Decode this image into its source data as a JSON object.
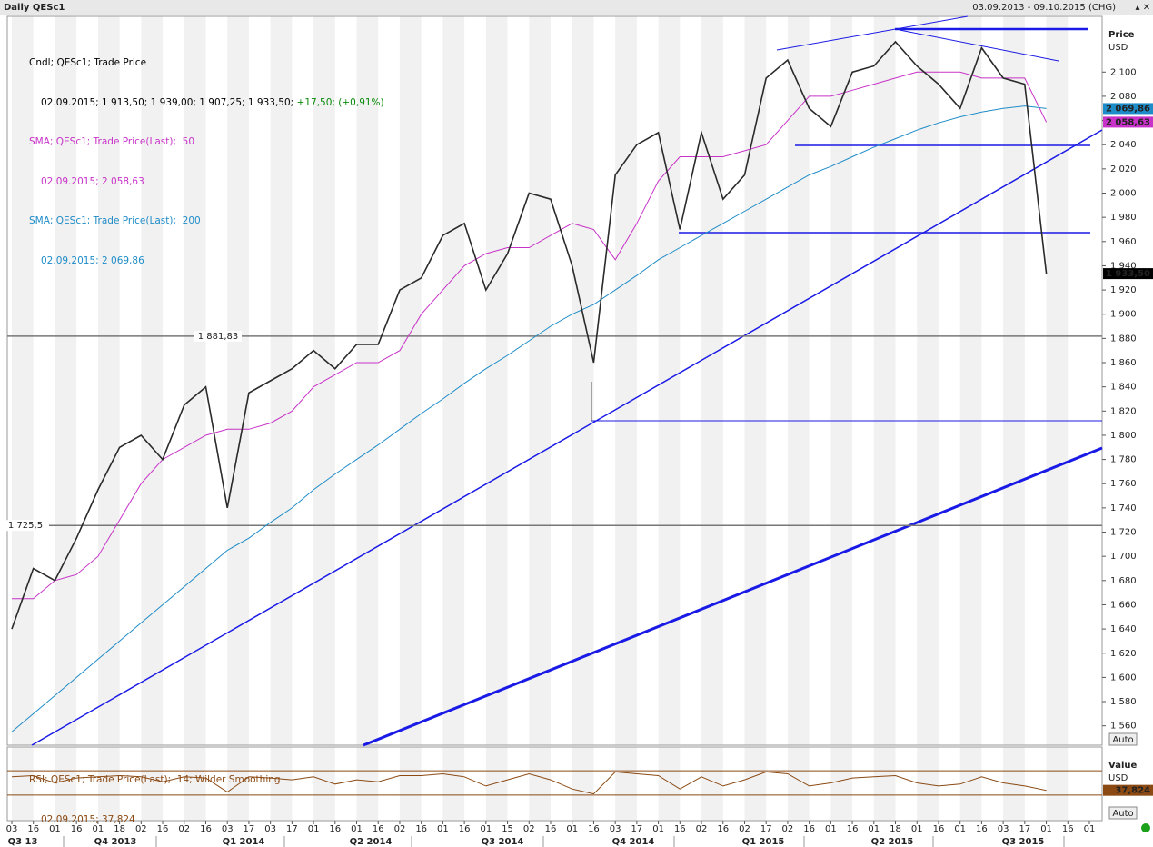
{
  "header": {
    "title": "Daily QESc1",
    "range": "03.09.2013 - 09.10.2015 (CHG)"
  },
  "chart_data": [
    {
      "type": "line",
      "axis_title": "Price",
      "axis_unit": "USD",
      "autoscale": "Auto",
      "categories": [
        "03",
        "16",
        "01",
        "16",
        "01",
        "18",
        "02",
        "16",
        "02",
        "16",
        "03",
        "17",
        "03",
        "17",
        "01",
        "16",
        "01",
        "16",
        "02",
        "16",
        "01",
        "16",
        "01",
        "15",
        "02",
        "16",
        "01",
        "16",
        "03",
        "17",
        "01",
        "16",
        "02",
        "16",
        "02",
        "17",
        "02",
        "16",
        "01",
        "16",
        "01",
        "18",
        "01",
        "16",
        "01",
        "16",
        "03",
        "17",
        "01",
        "16",
        "01"
      ],
      "quarters": [
        "Q3 13",
        "Q4 2013",
        "Q1 2014",
        "Q2 2014",
        "Q3 2014",
        "Q4 2014",
        "Q1 2015",
        "Q2 2015",
        "Q3 2015"
      ],
      "ylim": [
        1544,
        2146
      ],
      "yticks": [
        {
          "value": 1560,
          "label": "1 560"
        },
        {
          "value": 1580,
          "label": "1 580"
        },
        {
          "value": 1600,
          "label": "1 600"
        },
        {
          "value": 1620,
          "label": "1 620"
        },
        {
          "value": 1640,
          "label": "1 640"
        },
        {
          "value": 1660,
          "label": "1 660"
        },
        {
          "value": 1680,
          "label": "1 680"
        },
        {
          "value": 1700,
          "label": "1 700"
        },
        {
          "value": 1720,
          "label": "1 720"
        },
        {
          "value": 1740,
          "label": "1 740"
        },
        {
          "value": 1760,
          "label": "1 760"
        },
        {
          "value": 1780,
          "label": "1 780"
        },
        {
          "value": 1800,
          "label": "1 800"
        },
        {
          "value": 1820,
          "label": "1 820"
        },
        {
          "value": 1840,
          "label": "1 840"
        },
        {
          "value": 1860,
          "label": "1 860"
        },
        {
          "value": 1880,
          "label": "1 880"
        },
        {
          "value": 1900,
          "label": "1 900"
        },
        {
          "value": 1920,
          "label": "1 920"
        },
        {
          "value": 1940,
          "label": "1 940"
        },
        {
          "value": 1960,
          "label": "1 960"
        },
        {
          "value": 1980,
          "label": "1 980"
        },
        {
          "value": 2000,
          "label": "2 000"
        },
        {
          "value": 2020,
          "label": "2 020"
        },
        {
          "value": 2040,
          "label": "2 040"
        },
        {
          "value": 2060,
          "label": "2 060"
        },
        {
          "value": 2080,
          "label": "2 080"
        },
        {
          "value": 2100,
          "label": "2 100"
        }
      ],
      "legend": [
        {
          "name": "Cndl; QESc1; Trade Price",
          "detail": "02.09.2015; 1 913,50; 1 939,00; 1 907,25; 1 933,50;",
          "change": "+17,50; (+0,91%)",
          "color": "#000000"
        },
        {
          "name": "SMA; QESc1; Trade Price(Last);  50",
          "detail": "02.09.2015; 2 058,63",
          "color": "#c832c8"
        },
        {
          "name": "SMA; QESc1; Trade Price(Last);  200",
          "detail": "02.09.2015; 2 069,86",
          "color": "#1e8cc8"
        }
      ],
      "series": [
        {
          "name": "Close",
          "color": "#2a2a2a",
          "values": [
            1640,
            1690,
            1680,
            1715,
            1755,
            1790,
            1800,
            1780,
            1825,
            1840,
            1740,
            1835,
            1845,
            1855,
            1870,
            1855,
            1875,
            1875,
            1920,
            1930,
            1965,
            1975,
            1920,
            1950,
            2000,
            1995,
            1940,
            1860,
            2015,
            2040,
            2050,
            1970,
            2050,
            1995,
            2015,
            2095,
            2110,
            2070,
            2055,
            2100,
            2105,
            2125,
            2105,
            2090,
            2070,
            2120,
            2095,
            2090,
            1933.5,
            null,
            null
          ]
        },
        {
          "name": "SMA 50",
          "color": "#c832c8",
          "values": [
            1665,
            1665,
            1680,
            1685,
            1700,
            1730,
            1760,
            1780,
            1790,
            1800,
            1805,
            1805,
            1810,
            1820,
            1840,
            1850,
            1860,
            1860,
            1870,
            1900,
            1920,
            1940,
            1950,
            1955,
            1955,
            1965,
            1975,
            1970,
            1945,
            1975,
            2010,
            2030,
            2030,
            2030,
            2035,
            2040,
            2060,
            2080,
            2080,
            2085,
            2090,
            2095,
            2100,
            2100,
            2100,
            2095,
            2095,
            2095,
            2058.63,
            null,
            null
          ]
        },
        {
          "name": "SMA 200",
          "color": "#1e8cc8",
          "values": [
            1555,
            1570,
            1585,
            1600,
            1615,
            1630,
            1645,
            1660,
            1675,
            1690,
            1705,
            1715,
            1728,
            1740,
            1755,
            1768,
            1780,
            1792,
            1805,
            1818,
            1830,
            1843,
            1855,
            1866,
            1878,
            1890,
            1900,
            1908,
            1920,
            1932,
            1945,
            1955,
            1965,
            1975,
            1985,
            1995,
            2005,
            2015,
            2022,
            2030,
            2038,
            2045,
            2052,
            2058,
            2063,
            2067,
            2070,
            2072,
            2069.86,
            null,
            null
          ]
        }
      ],
      "hlines": [
        {
          "value": 1881.83,
          "label": "1 881,83"
        },
        {
          "value": 1725.5,
          "label": "1 725,5"
        }
      ],
      "price_tags": [
        {
          "value": 2069.86,
          "label": "2 069,86",
          "color": "#1e8cc8"
        },
        {
          "value": 2058.63,
          "label": "2 058,63",
          "color": "#c832c8"
        },
        {
          "value": 1933.5,
          "label": "1 933,50",
          "color": "#000000"
        }
      ]
    },
    {
      "type": "line",
      "axis_title": "Value",
      "axis_unit": "USD",
      "autoscale": "Auto",
      "legend": {
        "name": "RSI; QESc1; Trade Price(Last);  14; Wilder Smoothing",
        "detail": "02.09.2015; 37,824"
      },
      "ylim": [
        0,
        100
      ],
      "levels": [
        30,
        70
      ],
      "color": "#8b4a14",
      "values": [
        60,
        62,
        50,
        58,
        60,
        62,
        60,
        52,
        60,
        58,
        35,
        60,
        58,
        55,
        60,
        48,
        55,
        52,
        62,
        62,
        65,
        60,
        45,
        55,
        65,
        55,
        40,
        32,
        68,
        65,
        62,
        40,
        60,
        45,
        55,
        68,
        65,
        45,
        50,
        58,
        60,
        62,
        50,
        45,
        48,
        60,
        50,
        45,
        37.824,
        null,
        null
      ],
      "price_tag": {
        "value": 37.824,
        "label": "37,824"
      }
    }
  ]
}
